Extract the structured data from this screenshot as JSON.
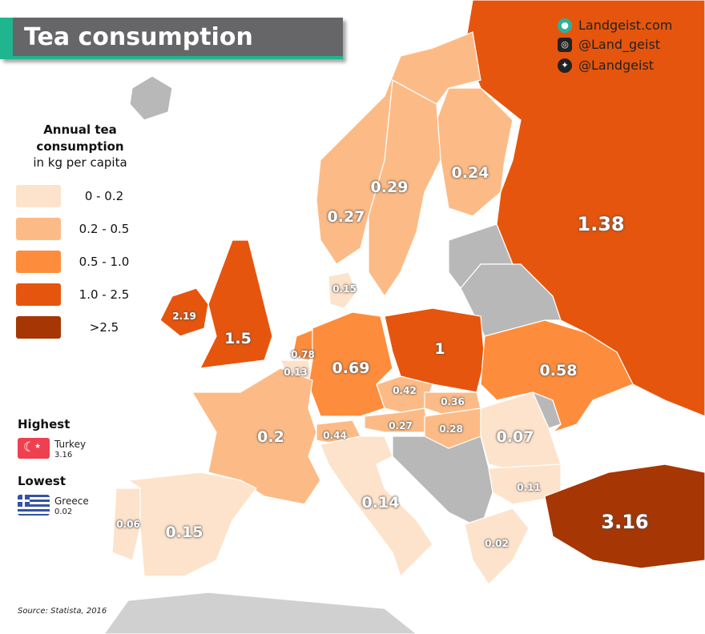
{
  "title": "Tea consumption",
  "social": {
    "website": "Landgeist.com",
    "instagram": "@Land_geist",
    "twitter": "@Landgeist"
  },
  "legend": {
    "title": "Annual tea consumption",
    "subtitle": "in kg per capita",
    "bins": [
      {
        "label": "0  - 0.2",
        "color": "#fde3cc"
      },
      {
        "label": "0.2 - 0.5",
        "color": "#fcbb86"
      },
      {
        "label": "0.5 - 1.0",
        "color": "#fd8d3c"
      },
      {
        "label": "1.0 - 2.5",
        "color": "#e6550d"
      },
      {
        "label": ">2.5",
        "color": "#a63603"
      }
    ]
  },
  "no_data_color": "#b8b8b8",
  "highest": {
    "heading": "Highest",
    "country": "Turkey",
    "value": "3.16"
  },
  "lowest": {
    "heading": "Lowest",
    "country": "Greece",
    "value": "0.02"
  },
  "source": "Source: Statista, 2016",
  "countries": [
    {
      "name": "Russia",
      "value": "1.38"
    },
    {
      "name": "Finland",
      "value": "0.24"
    },
    {
      "name": "Sweden",
      "value": "0.29"
    },
    {
      "name": "Norway",
      "value": "0.27"
    },
    {
      "name": "Ireland",
      "value": "2.19"
    },
    {
      "name": "United Kingdom",
      "value": "1.5"
    },
    {
      "name": "Denmark",
      "value": "0.15"
    },
    {
      "name": "Netherlands",
      "value": "0.78"
    },
    {
      "name": "Belgium",
      "value": "0.13"
    },
    {
      "name": "Germany",
      "value": "0.69"
    },
    {
      "name": "Poland",
      "value": "1"
    },
    {
      "name": "Ukraine",
      "value": "0.58"
    },
    {
      "name": "Czechia",
      "value": "0.42"
    },
    {
      "name": "Slovakia",
      "value": "0.36"
    },
    {
      "name": "Austria",
      "value": "0.27"
    },
    {
      "name": "Hungary",
      "value": "0.28"
    },
    {
      "name": "Switzerland",
      "value": "0.44"
    },
    {
      "name": "France",
      "value": "0.2"
    },
    {
      "name": "Romania",
      "value": "0.07"
    },
    {
      "name": "Bulgaria",
      "value": "0.11"
    },
    {
      "name": "Italy",
      "value": "0.14"
    },
    {
      "name": "Greece",
      "value": "0.02"
    },
    {
      "name": "Portugal",
      "value": "0.06"
    },
    {
      "name": "Spain",
      "value": "0.15"
    },
    {
      "name": "Turkey",
      "value": "3.16"
    }
  ]
}
